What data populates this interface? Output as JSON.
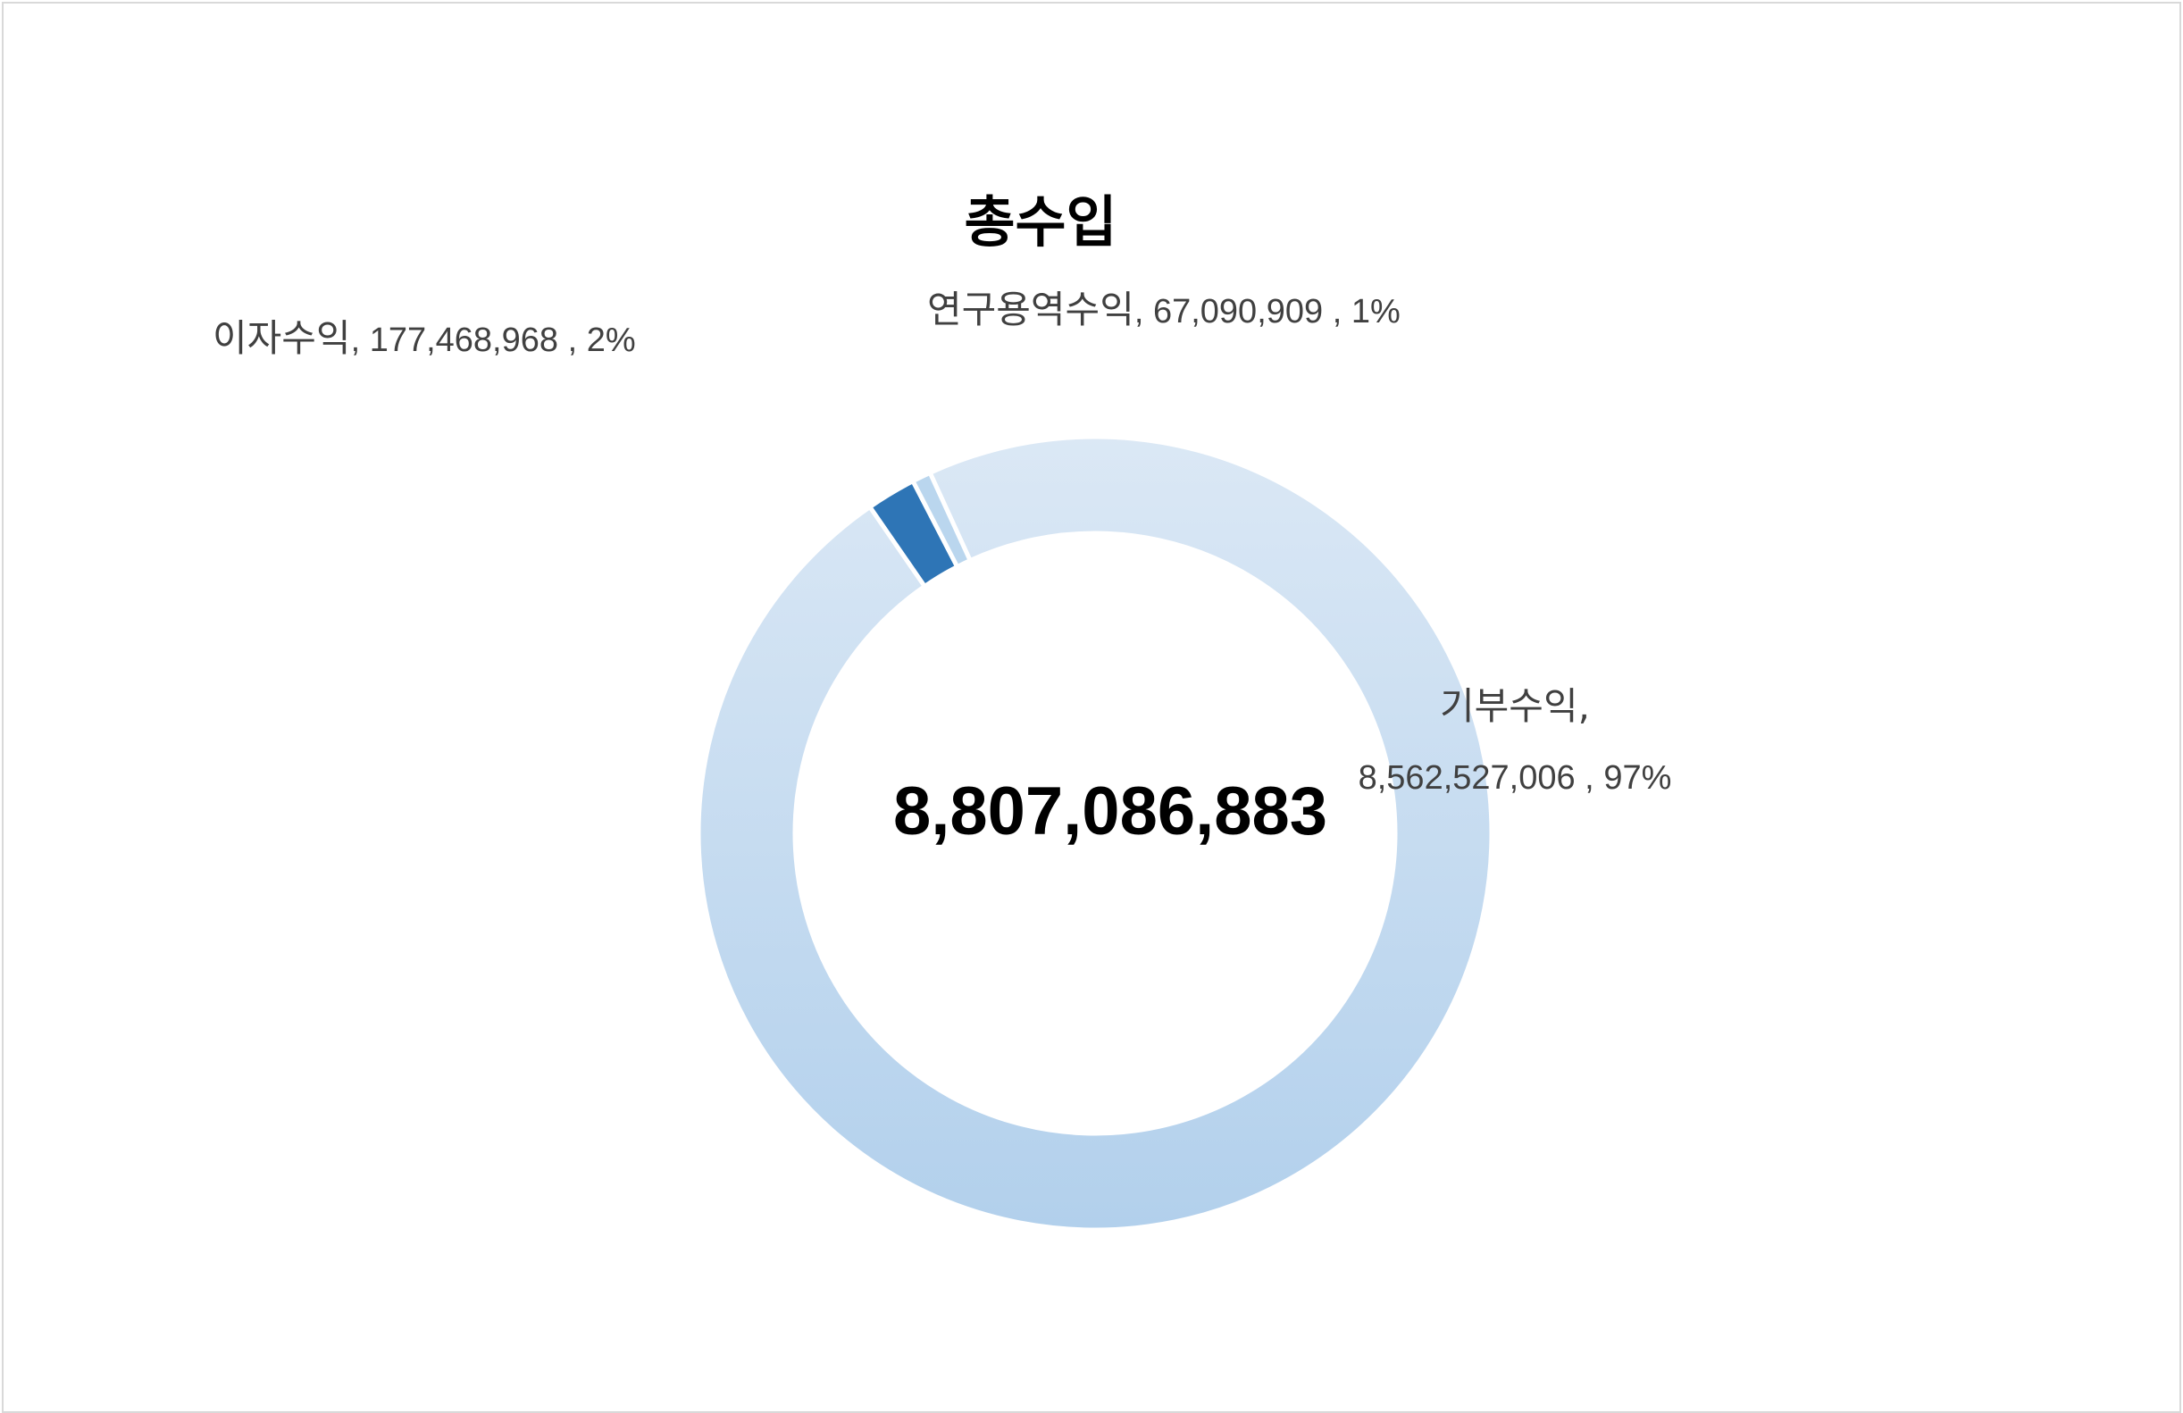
{
  "chart_data": {
    "type": "pie",
    "variant": "donut",
    "title": "총수입",
    "center_label": "8,807,086,883",
    "slices": [
      {
        "name": "기부수익",
        "value": 8562527006,
        "value_label": "8,562,527,006",
        "percent_label": "97%",
        "color": "#cfe1f3"
      },
      {
        "name": "이자수익",
        "value": 177468968,
        "value_label": "177,468,968",
        "percent_label": "2%",
        "color": "#2e75b6"
      },
      {
        "name": "연구용역수익",
        "value": 67090909,
        "value_label": "67,090,909",
        "percent_label": "1%",
        "color": "#bad6ee"
      }
    ],
    "gradient": {
      "top": "#dbe8f5",
      "bottom": "#b2d0ec"
    },
    "legend": "none"
  }
}
